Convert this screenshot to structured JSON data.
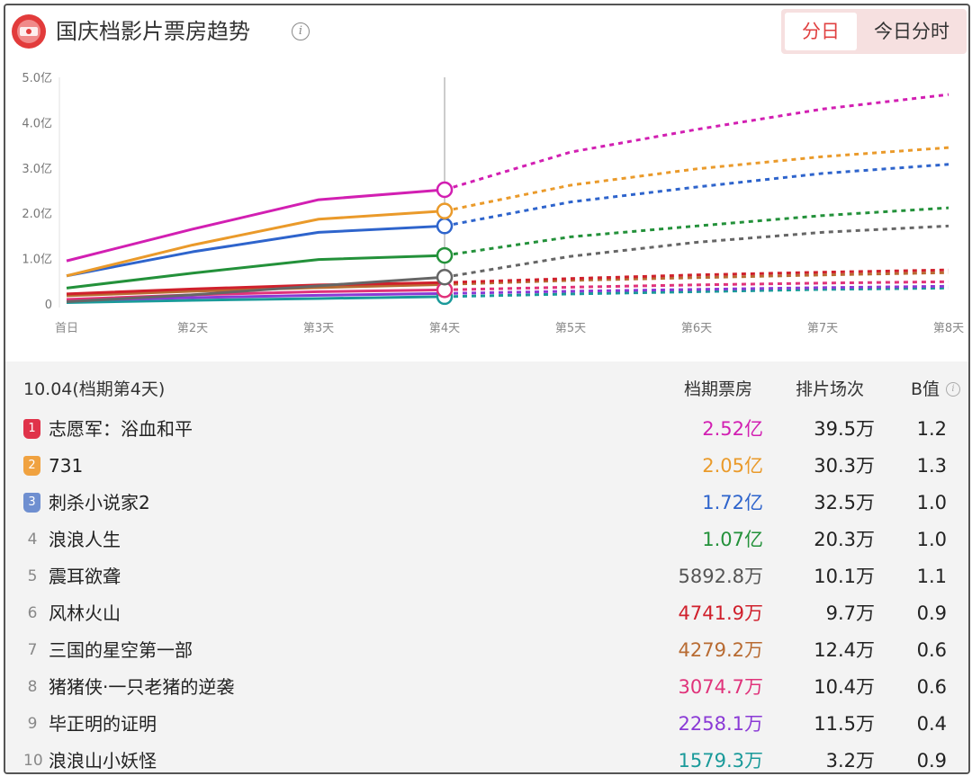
{
  "header": {
    "title": "国庆档影片票房趋势",
    "tabs": [
      {
        "label": "分日",
        "active": true
      },
      {
        "label": "今日分时",
        "active": false
      }
    ]
  },
  "chart_data": {
    "type": "line",
    "categories": [
      "首日",
      "第2天",
      "第3天",
      "第4天",
      "第5天",
      "第6天",
      "第7天",
      "第8天"
    ],
    "y_ticks": [
      "0",
      "1.0亿",
      "2.0亿",
      "3.0亿",
      "4.0亿",
      "5.0亿"
    ],
    "ylim": [
      0,
      5.0
    ],
    "actual_through_index": 3,
    "grid": false,
    "series": [
      {
        "values": [
          0.95,
          1.65,
          2.3,
          2.52,
          3.35,
          3.85,
          4.3,
          4.62
        ],
        "color": "#d21fb2"
      },
      {
        "values": [
          0.62,
          1.3,
          1.87,
          2.05,
          2.62,
          2.98,
          3.25,
          3.45
        ],
        "color": "#ea9a2a"
      },
      {
        "values": [
          0.62,
          1.15,
          1.58,
          1.72,
          2.25,
          2.58,
          2.88,
          3.08
        ],
        "color": "#2e64cc"
      },
      {
        "values": [
          0.35,
          0.68,
          0.98,
          1.07,
          1.48,
          1.72,
          1.95,
          2.12
        ],
        "color": "#23913a"
      },
      {
        "values": [
          0.05,
          0.2,
          0.4,
          0.59,
          1.05,
          1.36,
          1.58,
          1.72
        ],
        "color": "#666666"
      },
      {
        "values": [
          0.22,
          0.33,
          0.42,
          0.47,
          0.56,
          0.64,
          0.7,
          0.75
        ],
        "color": "#d0202c"
      },
      {
        "values": [
          0.18,
          0.28,
          0.36,
          0.43,
          0.52,
          0.58,
          0.64,
          0.69
        ],
        "color": "#b86b32"
      },
      {
        "values": [
          0.1,
          0.2,
          0.27,
          0.31,
          0.37,
          0.42,
          0.46,
          0.49
        ],
        "color": "#e0327a"
      },
      {
        "values": [
          0.08,
          0.14,
          0.19,
          0.23,
          0.28,
          0.32,
          0.36,
          0.39
        ],
        "color": "#8a3ad6"
      },
      {
        "values": [
          0.03,
          0.08,
          0.12,
          0.16,
          0.22,
          0.27,
          0.32,
          0.35
        ],
        "color": "#1a9a9a"
      }
    ]
  },
  "table": {
    "date_label": "10.04(档期第4天)",
    "col_box": "档期票房",
    "col_shows": "排片场次",
    "col_b": "B值",
    "rows": [
      {
        "rank": "1",
        "name": "志愿军：浴血和平",
        "box": "2.52亿",
        "shows": "39.5万",
        "b": "1.2",
        "color": "#d21fb2",
        "badge": "#e0334a"
      },
      {
        "rank": "2",
        "name": "731",
        "box": "2.05亿",
        "shows": "30.3万",
        "b": "1.3",
        "color": "#ea9a2a",
        "badge": "#f0a240"
      },
      {
        "rank": "3",
        "name": "刺杀小说家2",
        "box": "1.72亿",
        "shows": "32.5万",
        "b": "1.0",
        "color": "#2e64cc",
        "badge": "#6f8fd0"
      },
      {
        "rank": "4",
        "name": "浪浪人生",
        "box": "1.07亿",
        "shows": "20.3万",
        "b": "1.0",
        "color": "#23913a",
        "badge": ""
      },
      {
        "rank": "5",
        "name": "震耳欲聋",
        "box": "5892.8万",
        "shows": "10.1万",
        "b": "1.1",
        "color": "#555555",
        "badge": ""
      },
      {
        "rank": "6",
        "name": "风林火山",
        "box": "4741.9万",
        "shows": "9.7万",
        "b": "0.9",
        "color": "#d0202c",
        "badge": ""
      },
      {
        "rank": "7",
        "name": "三国的星空第一部",
        "box": "4279.2万",
        "shows": "12.4万",
        "b": "0.6",
        "color": "#b86b32",
        "badge": ""
      },
      {
        "rank": "8",
        "name": "猪猪侠·一只老猪的逆袭",
        "box": "3074.7万",
        "shows": "10.4万",
        "b": "0.6",
        "color": "#e0327a",
        "badge": ""
      },
      {
        "rank": "9",
        "name": "毕正明的证明",
        "box": "2258.1万",
        "shows": "11.5万",
        "b": "0.4",
        "color": "#8a3ad6",
        "badge": ""
      },
      {
        "rank": "10",
        "name": "浪浪山小妖怪",
        "box": "1579.3万",
        "shows": "3.2万",
        "b": "0.9",
        "color": "#1a9a9a",
        "badge": ""
      }
    ]
  }
}
